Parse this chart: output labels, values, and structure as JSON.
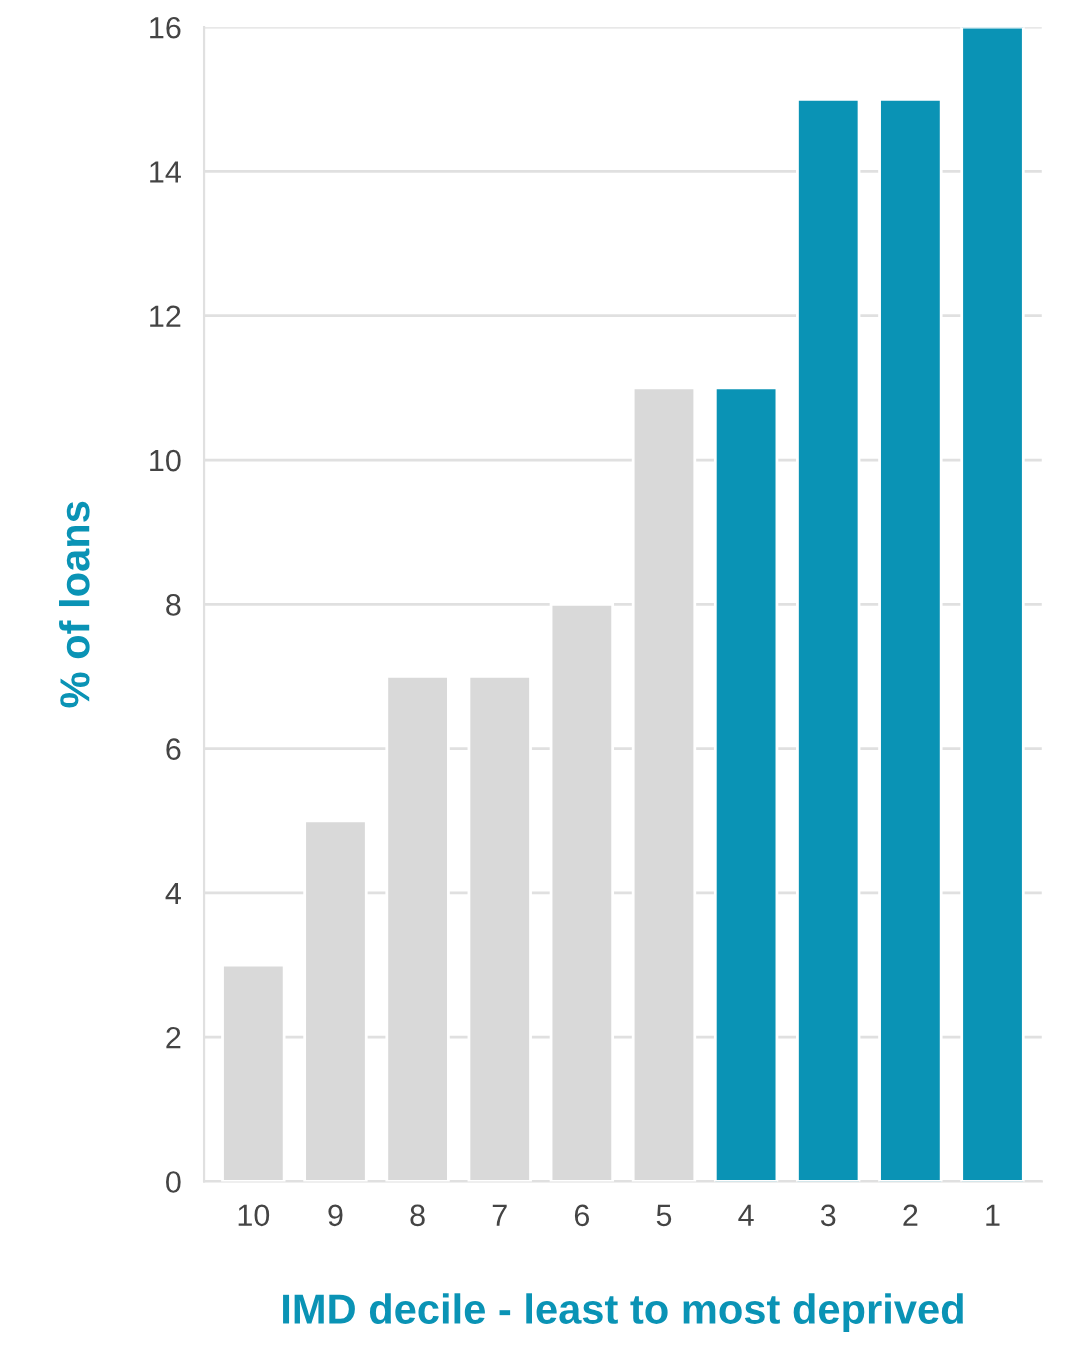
{
  "chart_data": {
    "type": "bar",
    "xlabel": "IMD decile - least to most deprived",
    "ylabel": "% of loans",
    "categories": [
      "10",
      "9",
      "8",
      "7",
      "6",
      "5",
      "4",
      "3",
      "2",
      "1"
    ],
    "values": [
      3,
      5,
      7,
      7,
      8,
      11,
      11,
      15,
      15,
      16
    ],
    "colors": [
      "#d9d9d9",
      "#d9d9d9",
      "#d9d9d9",
      "#d9d9d9",
      "#d9d9d9",
      "#d9d9d9",
      "#0a93b5",
      "#0a93b5",
      "#0a93b5",
      "#0a93b5"
    ],
    "ylim": [
      0,
      16
    ],
    "yticks": [
      0,
      2,
      4,
      6,
      8,
      10,
      12,
      14,
      16
    ],
    "grid": "y"
  }
}
